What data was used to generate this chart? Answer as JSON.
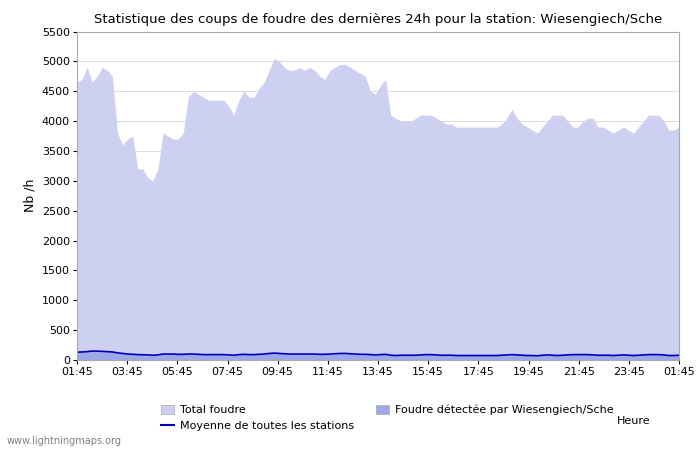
{
  "title": "Statistique des coups de foudre des dernières 24h pour la station: Wiesengiech/Sche",
  "ylabel": "Nb /h",
  "xlabel": "Heure",
  "ylim": [
    0,
    5500
  ],
  "yticks": [
    0,
    500,
    1000,
    1500,
    2000,
    2500,
    3000,
    3500,
    4000,
    4500,
    5000,
    5500
  ],
  "xtick_labels": [
    "01:45",
    "03:45",
    "05:45",
    "07:45",
    "09:45",
    "11:45",
    "13:45",
    "15:45",
    "17:45",
    "19:45",
    "21:45",
    "23:45",
    "01:45"
  ],
  "color_total": "#cdd0f0",
  "color_station": "#9da8e8",
  "color_mean": "#0000bb",
  "color_grid": "#cccccc",
  "color_bg": "#ffffff",
  "watermark": "www.lightningmaps.org",
  "legend": [
    "Total foudre",
    "Moyenne de toutes les stations",
    "Foudre détectée par Wiesengiech/Sche"
  ],
  "total_foudre": [
    4650,
    4700,
    4900,
    4650,
    4750,
    4900,
    4850,
    4750,
    3800,
    3600,
    3700,
    3750,
    3200,
    3200,
    3050,
    3000,
    3200,
    3800,
    3750,
    3700,
    3700,
    3800,
    4400,
    4500,
    4450,
    4400,
    4350,
    4350,
    4350,
    4350,
    4250,
    4100,
    4350,
    4500,
    4400,
    4400,
    4550,
    4650,
    4850,
    5050,
    5000,
    4900,
    4850,
    4850,
    4900,
    4850,
    4900,
    4850,
    4750,
    4700,
    4850,
    4900,
    4950,
    4950,
    4900,
    4850,
    4800,
    4750,
    4500,
    4450,
    4600,
    4700,
    4100,
    4050,
    4000,
    4000,
    4000,
    4050,
    4100,
    4100,
    4100,
    4050,
    4000,
    3950,
    3950,
    3900,
    3900,
    3900,
    3900,
    3900,
    3900,
    3900,
    3900,
    3900,
    3950,
    4050,
    4200,
    4050,
    3950,
    3900,
    3850,
    3800,
    3900,
    4000,
    4100,
    4100,
    4100,
    4000,
    3900,
    3900,
    4000,
    4050,
    4050,
    3900,
    3900,
    3850,
    3800,
    3850,
    3900,
    3850,
    3800,
    3900,
    4000,
    4100,
    4100,
    4100,
    4000,
    3850,
    3850,
    3900
  ],
  "station_foudre": [
    130,
    140,
    150,
    160,
    155,
    150,
    145,
    140,
    120,
    110,
    100,
    95,
    90,
    90,
    85,
    80,
    85,
    100,
    100,
    100,
    95,
    95,
    100,
    100,
    95,
    90,
    90,
    90,
    90,
    90,
    85,
    80,
    90,
    95,
    90,
    90,
    95,
    100,
    110,
    115,
    110,
    105,
    100,
    100,
    100,
    100,
    100,
    100,
    95,
    95,
    100,
    105,
    110,
    110,
    105,
    100,
    95,
    95,
    90,
    85,
    90,
    95,
    80,
    75,
    80,
    80,
    80,
    80,
    85,
    90,
    90,
    85,
    80,
    80,
    80,
    75,
    75,
    75,
    75,
    75,
    75,
    75,
    75,
    75,
    80,
    85,
    90,
    85,
    80,
    75,
    75,
    70,
    80,
    85,
    80,
    75,
    80,
    85,
    90,
    90,
    90,
    90,
    85,
    80,
    80,
    80,
    75,
    80,
    85,
    80,
    75,
    80,
    85,
    90,
    90,
    90,
    85,
    75,
    75,
    80
  ],
  "mean_line": [
    130,
    135,
    140,
    150,
    148,
    145,
    140,
    135,
    120,
    110,
    100,
    95,
    90,
    88,
    85,
    80,
    85,
    100,
    100,
    100,
    95,
    95,
    100,
    100,
    95,
    90,
    90,
    90,
    90,
    90,
    85,
    80,
    90,
    95,
    90,
    90,
    95,
    100,
    110,
    115,
    110,
    105,
    100,
    100,
    100,
    100,
    100,
    100,
    95,
    95,
    100,
    105,
    110,
    110,
    105,
    100,
    95,
    95,
    90,
    85,
    90,
    95,
    80,
    75,
    80,
    80,
    80,
    80,
    85,
    90,
    90,
    85,
    80,
    80,
    80,
    75,
    75,
    75,
    75,
    75,
    75,
    75,
    75,
    75,
    80,
    85,
    90,
    85,
    80,
    75,
    75,
    70,
    80,
    85,
    80,
    75,
    80,
    85,
    90,
    90,
    90,
    90,
    85,
    80,
    80,
    80,
    75,
    80,
    85,
    80,
    75,
    80,
    85,
    90,
    90,
    90,
    85,
    75,
    75,
    80
  ]
}
